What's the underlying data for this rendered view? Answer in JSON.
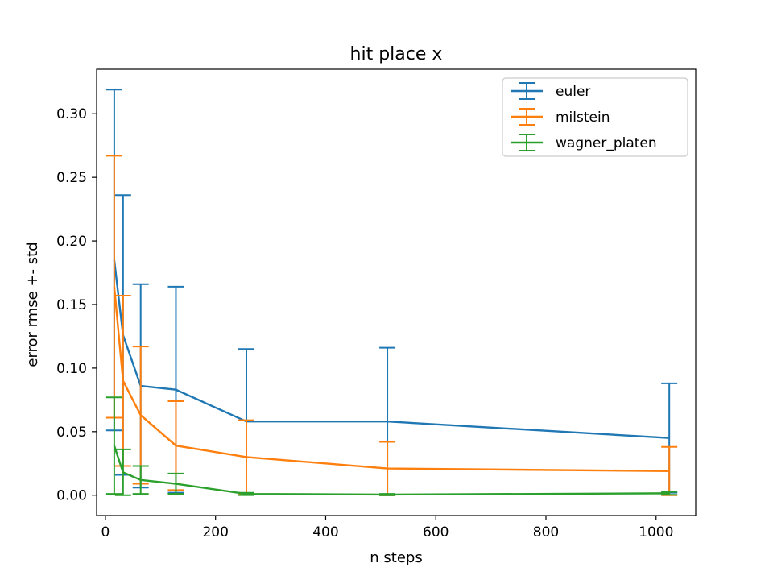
{
  "chart_data": {
    "type": "line",
    "title": "hit place x",
    "xlabel": "n steps",
    "ylabel": "error rmse +- std",
    "xlim": [
      -16,
      1072
    ],
    "ylim": [
      -0.016,
      0.335
    ],
    "xticks": [
      0,
      200,
      400,
      600,
      800,
      1000
    ],
    "xtick_labels": [
      "0",
      "200",
      "400",
      "600",
      "800",
      "1000"
    ],
    "yticks": [
      0.0,
      0.05,
      0.1,
      0.15,
      0.2,
      0.25,
      0.3
    ],
    "ytick_labels": [
      "0.00",
      "0.05",
      "0.10",
      "0.15",
      "0.20",
      "0.25",
      "0.30"
    ],
    "grid": false,
    "legend_position": "top-right",
    "x": [
      16,
      32,
      64,
      128,
      256,
      512,
      1024
    ],
    "series": [
      {
        "name": "euler",
        "color": "#1f77b4",
        "values": [
          0.185,
          0.126,
          0.086,
          0.083,
          0.058,
          0.058,
          0.045
        ],
        "error": [
          0.134,
          0.11,
          0.08,
          0.081,
          0.057,
          0.058,
          0.043
        ]
      },
      {
        "name": "milstein",
        "color": "#ff7f0e",
        "values": [
          0.164,
          0.09,
          0.063,
          0.039,
          0.03,
          0.021,
          0.019
        ],
        "error": [
          0.103,
          0.067,
          0.054,
          0.035,
          0.029,
          0.021,
          0.019
        ]
      },
      {
        "name": "wagner_platen",
        "color": "#2ca02c",
        "values": [
          0.039,
          0.018,
          0.012,
          0.009,
          0.001,
          0.0005,
          0.0015
        ],
        "error": [
          0.038,
          0.018,
          0.011,
          0.008,
          0.0009,
          0.0005,
          0.0012
        ]
      }
    ]
  }
}
